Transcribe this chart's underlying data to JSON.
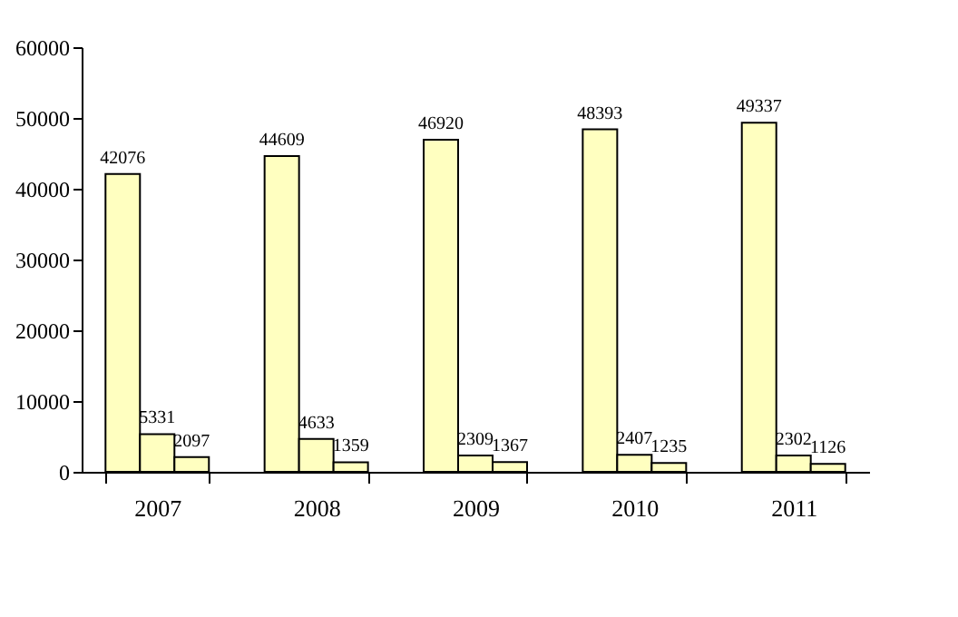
{
  "chart_data": {
    "type": "bar",
    "categories": [
      "2007",
      "2008",
      "2009",
      "2010",
      "2011"
    ],
    "series": [
      {
        "color": "#ffffc0",
        "values": [
          42076,
          44609,
          46920,
          48393,
          49337
        ]
      },
      {
        "color": "#ffffc0",
        "values": [
          5331,
          4633,
          2309,
          2407,
          2302
        ]
      },
      {
        "color": "#ffffc0",
        "values": [
          2097,
          1359,
          1367,
          1235,
          1126
        ]
      }
    ],
    "ylim": [
      0,
      60000
    ],
    "yticks": [
      0,
      10000,
      20000,
      30000,
      40000,
      50000,
      60000
    ],
    "grid": false,
    "legend": false,
    "data_labels": true
  }
}
